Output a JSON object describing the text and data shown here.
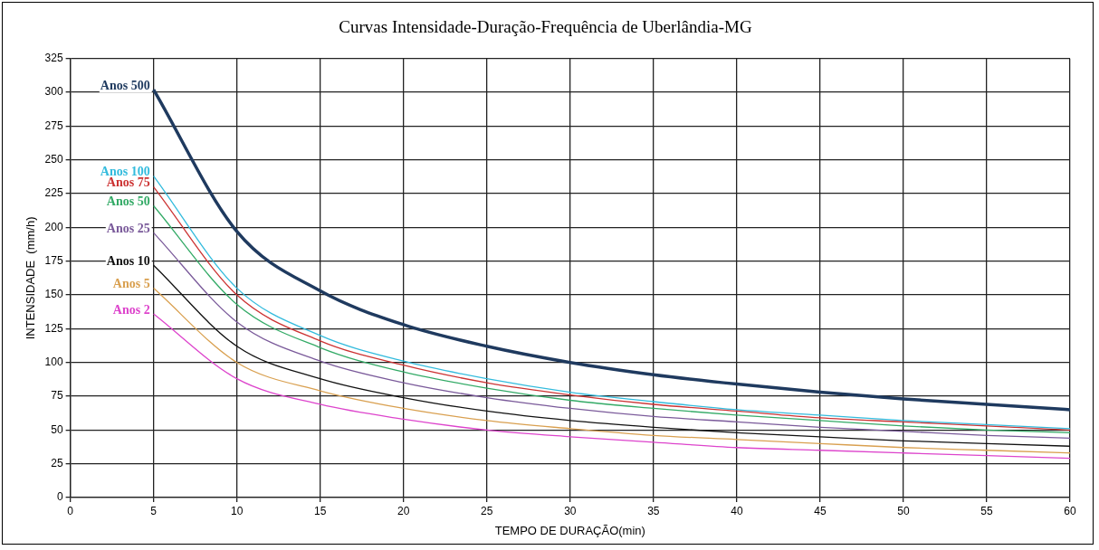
{
  "chart_data": {
    "type": "line",
    "title": "Curvas Intensidade-Duração-Frequência de Uberlândia-MG",
    "xlabel": "TEMPO DE DURAÇÃO(min)",
    "ylabel": "INTENSIDADE  (mm/h)",
    "x": [
      5,
      10,
      15,
      20,
      25,
      30,
      35,
      40,
      45,
      50,
      55,
      60
    ],
    "series": [
      {
        "name": "Anos 500",
        "color": "#1f3a5f",
        "values": [
          302,
          197,
          153,
          128,
          112,
          100,
          91,
          84,
          78,
          73,
          69,
          65
        ]
      },
      {
        "name": "Anos 100",
        "color": "#33bbdd",
        "values": [
          238,
          155,
          120,
          101,
          88,
          78,
          71,
          65,
          61,
          57,
          54,
          51
        ]
      },
      {
        "name": "Anos 75",
        "color": "#cc3333",
        "values": [
          230,
          150,
          116,
          98,
          85,
          76,
          69,
          64,
          59,
          56,
          53,
          50
        ]
      },
      {
        "name": "Anos 50",
        "color": "#33aa66",
        "values": [
          216,
          143,
          111,
          93,
          81,
          72,
          66,
          61,
          57,
          53,
          50,
          48
        ]
      },
      {
        "name": "Anos 25",
        "color": "#7a5a9a",
        "values": [
          196,
          130,
          101,
          85,
          74,
          66,
          60,
          56,
          52,
          49,
          46,
          44
        ]
      },
      {
        "name": "Anos 10",
        "color": "#111111",
        "values": [
          172,
          112,
          88,
          74,
          64,
          57,
          52,
          48,
          45,
          42,
          40,
          38
        ]
      },
      {
        "name": "Anos 5",
        "color": "#d9a050",
        "values": [
          155,
          100,
          79,
          66,
          57,
          51,
          46,
          43,
          40,
          37,
          35,
          33
        ]
      },
      {
        "name": "Anos 2",
        "color": "#dd44cc",
        "values": [
          136,
          88,
          69,
          58,
          50,
          45,
          41,
          37,
          35,
          33,
          31,
          29
        ]
      }
    ],
    "xlim": [
      0,
      60
    ],
    "xticks": [
      0,
      5,
      10,
      15,
      20,
      25,
      30,
      35,
      40,
      45,
      50,
      55,
      60
    ],
    "ylim": [
      0,
      325
    ],
    "yticks": [
      0,
      25,
      50,
      75,
      100,
      125,
      150,
      175,
      200,
      225,
      250,
      275,
      300,
      325
    ],
    "grid": true,
    "legend": false,
    "marker": "none",
    "line_style": "solid"
  }
}
